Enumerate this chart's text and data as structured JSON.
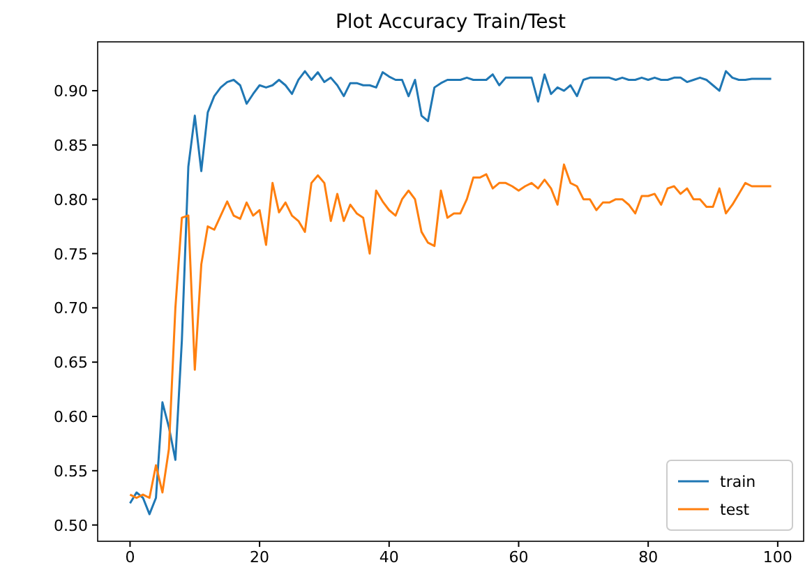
{
  "chart_data": {
    "type": "line",
    "title": "Plot Accuracy Train/Test",
    "x": [
      0,
      1,
      2,
      3,
      4,
      5,
      6,
      7,
      8,
      9,
      10,
      11,
      12,
      13,
      14,
      15,
      16,
      17,
      18,
      19,
      20,
      21,
      22,
      23,
      24,
      25,
      26,
      27,
      28,
      29,
      30,
      31,
      32,
      33,
      34,
      35,
      36,
      37,
      38,
      39,
      40,
      41,
      42,
      43,
      44,
      45,
      46,
      47,
      48,
      49,
      50,
      51,
      52,
      53,
      54,
      55,
      56,
      57,
      58,
      59,
      60,
      61,
      62,
      63,
      64,
      65,
      66,
      67,
      68,
      69,
      70,
      71,
      72,
      73,
      74,
      75,
      76,
      77,
      78,
      79,
      80,
      81,
      82,
      83,
      84,
      85,
      86,
      87,
      88,
      89,
      90,
      91,
      92,
      93,
      94,
      95,
      96,
      97,
      98,
      99
    ],
    "series": [
      {
        "name": "train",
        "color": "#1f77b4",
        "values": [
          0.52,
          0.53,
          0.525,
          0.51,
          0.525,
          0.613,
          0.59,
          0.56,
          0.67,
          0.83,
          0.877,
          0.826,
          0.88,
          0.895,
          0.903,
          0.908,
          0.91,
          0.905,
          0.888,
          0.897,
          0.905,
          0.903,
          0.905,
          0.91,
          0.905,
          0.897,
          0.91,
          0.918,
          0.91,
          0.917,
          0.908,
          0.912,
          0.905,
          0.895,
          0.907,
          0.907,
          0.905,
          0.905,
          0.903,
          0.917,
          0.913,
          0.91,
          0.91,
          0.895,
          0.91,
          0.877,
          0.872,
          0.903,
          0.907,
          0.91,
          0.91,
          0.91,
          0.912,
          0.91,
          0.91,
          0.91,
          0.915,
          0.905,
          0.912,
          0.912,
          0.912,
          0.912,
          0.912,
          0.89,
          0.915,
          0.897,
          0.903,
          0.9,
          0.905,
          0.895,
          0.91,
          0.912,
          0.912,
          0.912,
          0.912,
          0.91,
          0.912,
          0.91,
          0.91,
          0.912,
          0.91,
          0.912,
          0.91,
          0.91,
          0.912,
          0.912,
          0.908,
          0.91,
          0.912,
          0.91,
          0.905,
          0.9,
          0.918,
          0.912,
          0.91,
          0.91,
          0.911,
          0.911,
          0.911,
          0.911
        ]
      },
      {
        "name": "test",
        "color": "#ff7f0e",
        "values": [
          0.528,
          0.525,
          0.528,
          0.525,
          0.555,
          0.53,
          0.57,
          0.7,
          0.783,
          0.785,
          0.643,
          0.74,
          0.775,
          0.772,
          0.785,
          0.798,
          0.785,
          0.782,
          0.797,
          0.785,
          0.79,
          0.758,
          0.815,
          0.788,
          0.797,
          0.785,
          0.78,
          0.77,
          0.815,
          0.822,
          0.815,
          0.78,
          0.805,
          0.78,
          0.795,
          0.787,
          0.783,
          0.75,
          0.808,
          0.798,
          0.79,
          0.785,
          0.8,
          0.808,
          0.8,
          0.77,
          0.76,
          0.757,
          0.808,
          0.783,
          0.787,
          0.787,
          0.8,
          0.82,
          0.82,
          0.823,
          0.81,
          0.815,
          0.815,
          0.812,
          0.808,
          0.812,
          0.815,
          0.81,
          0.818,
          0.81,
          0.795,
          0.832,
          0.815,
          0.812,
          0.8,
          0.8,
          0.79,
          0.797,
          0.797,
          0.8,
          0.8,
          0.795,
          0.787,
          0.803,
          0.803,
          0.805,
          0.795,
          0.81,
          0.812,
          0.805,
          0.81,
          0.8,
          0.8,
          0.793,
          0.793,
          0.81,
          0.787,
          0.795,
          0.805,
          0.815,
          0.812,
          0.812,
          0.812,
          0.812
        ]
      }
    ],
    "xlim": [
      -5,
      104
    ],
    "ylim": [
      0.485,
      0.945
    ],
    "xticks": [
      0,
      20,
      40,
      60,
      80,
      100
    ],
    "yticks": [
      {
        "value": 0.5,
        "label": "0.50"
      },
      {
        "value": 0.55,
        "label": "0.55"
      },
      {
        "value": 0.6,
        "label": "0.60"
      },
      {
        "value": 0.65,
        "label": "0.65"
      },
      {
        "value": 0.7,
        "label": "0.70"
      },
      {
        "value": 0.75,
        "label": "0.75"
      },
      {
        "value": 0.8,
        "label": "0.80"
      },
      {
        "value": 0.85,
        "label": "0.85"
      },
      {
        "value": 0.9,
        "label": "0.90"
      }
    ],
    "legend": "bottom right",
    "grid": false,
    "line_style": "solid",
    "marker": "none"
  }
}
